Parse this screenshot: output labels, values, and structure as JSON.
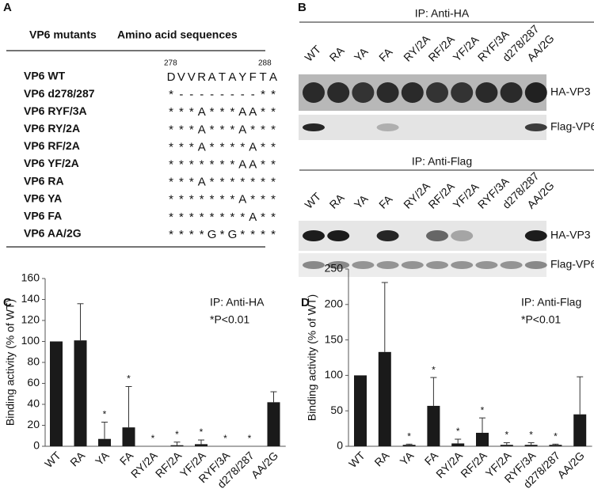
{
  "panel_labels": [
    "A",
    "B",
    "C",
    "D"
  ],
  "panel_a": {
    "header": [
      "VP6 mutants",
      "Amino acid sequences"
    ],
    "superscripts": [
      "278",
      "288"
    ],
    "rows": [
      {
        "name": "VP6 WT",
        "sequence": [
          "D",
          "V",
          "V",
          "R",
          "A",
          "T",
          "A",
          "Y",
          "F",
          "T",
          "A"
        ]
      },
      {
        "name": "VP6 d278/287",
        "sequence": [
          "*",
          "-",
          "-",
          "-",
          "-",
          "-",
          "-",
          "-",
          "-",
          "*",
          "*"
        ]
      },
      {
        "name": "VP6 RYF/3A",
        "sequence": [
          "*",
          "*",
          "*",
          "A",
          "*",
          "*",
          "*",
          "A",
          "A",
          "*",
          "*"
        ]
      },
      {
        "name": "VP6 RY/2A",
        "sequence": [
          "*",
          "*",
          "*",
          "A",
          "*",
          "*",
          "*",
          "A",
          "*",
          "*",
          "*"
        ]
      },
      {
        "name": "VP6 RF/2A",
        "sequence": [
          "*",
          "*",
          "*",
          "A",
          "*",
          "*",
          "*",
          "*",
          "A",
          "*",
          "*"
        ]
      },
      {
        "name": "VP6 YF/2A",
        "sequence": [
          "*",
          "*",
          "*",
          "*",
          "*",
          "*",
          "*",
          "A",
          "A",
          "*",
          "*"
        ]
      },
      {
        "name": "VP6 RA",
        "sequence": [
          "*",
          "*",
          "*",
          "A",
          "*",
          "*",
          "*",
          "*",
          "*",
          "*",
          "*"
        ]
      },
      {
        "name": "VP6 YA",
        "sequence": [
          "*",
          "*",
          "*",
          "*",
          "*",
          "*",
          "*",
          "A",
          "*",
          "*",
          "*"
        ]
      },
      {
        "name": "VP6 FA",
        "sequence": [
          "*",
          "*",
          "*",
          "*",
          "*",
          "*",
          "*",
          "*",
          "A",
          "*",
          "*"
        ]
      },
      {
        "name": "VP6 AA/2G",
        "sequence": [
          "*",
          "*",
          "*",
          "*",
          "G",
          "*",
          "G",
          "*",
          "*",
          "*",
          "*"
        ]
      }
    ]
  },
  "panel_b": {
    "sections": [
      {
        "title": "IP: Anti-HA",
        "lanes": [
          "WT",
          "RA",
          "YA",
          "FA",
          "RY/2A",
          "RF/2A",
          "YF/2A",
          "RYF/3A",
          "d278/287",
          "AA/2G"
        ],
        "bands": [
          "HA-VP3",
          "Flag-VP6"
        ]
      },
      {
        "title": "IP: Anti-Flag",
        "lanes": [
          "WT",
          "RA",
          "YA",
          "FA",
          "RY/2A",
          "RF/2A",
          "YF/2A",
          "RYF/3A",
          "d278/287",
          "AA/2G"
        ],
        "bands": [
          "HA-VP3",
          "Flag-VP6"
        ]
      }
    ]
  },
  "chart_data": [
    {
      "type": "bar",
      "ylabel": "Binding activity (% of WT)",
      "annotations": [
        "IP: Anti-HA",
        "*P<0.01"
      ],
      "categories": [
        "WT",
        "RA",
        "YA",
        "FA",
        "RY/2A",
        "RF/2A",
        "YF/2A",
        "RYF/3A",
        "d278/287",
        "AA/2G"
      ],
      "values": [
        100,
        101,
        7,
        18,
        0,
        1,
        2,
        0,
        0,
        42
      ],
      "errors": [
        0,
        35,
        16,
        39,
        0,
        3,
        4,
        0,
        0,
        10
      ],
      "significance": [
        null,
        null,
        "*",
        "*",
        "*",
        "*",
        "*",
        "*",
        "*",
        null
      ],
      "color": "#1a1a1a",
      "ylim": [
        0,
        160
      ],
      "yticks": [
        0,
        20,
        40,
        60,
        80,
        100,
        120,
        140,
        160
      ]
    },
    {
      "type": "bar",
      "ylabel": "Binding activity (% of WT)",
      "annotations": [
        "IP: Anti-Flag",
        "*P<0.01"
      ],
      "categories": [
        "WT",
        "RA",
        "YA",
        "FA",
        "RY/2A",
        "RF/2A",
        "YF/2A",
        "RYF/3A",
        "d278/287",
        "AA/2G"
      ],
      "values": [
        100,
        133,
        2,
        57,
        4,
        19,
        2,
        2,
        2,
        45
      ],
      "errors": [
        0,
        98,
        1,
        40,
        6,
        21,
        3,
        3,
        1,
        53
      ],
      "significance": [
        null,
        null,
        "*",
        "*",
        "*",
        "*",
        "*",
        "*",
        "*",
        null
      ],
      "color": "#1a1a1a",
      "ylim": [
        0,
        250
      ],
      "yticks": [
        0,
        50,
        100,
        150,
        200,
        250
      ]
    }
  ]
}
